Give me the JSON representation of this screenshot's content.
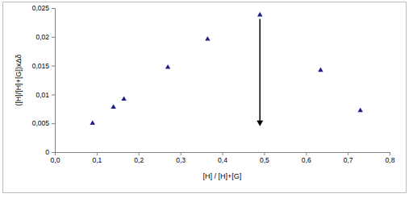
{
  "chart_data": {
    "type": "scatter",
    "x_label": "[H] / [H]+[G]",
    "y_label": "([H]/[H]+[G])xΔδ",
    "x": [
      0.09,
      0.14,
      0.165,
      0.27,
      0.365,
      0.49,
      0.635,
      0.73
    ],
    "values": [
      0.005,
      0.0078,
      0.0092,
      0.0147,
      0.0196,
      0.0238,
      0.0142,
      0.0072
    ],
    "color": "#1f1f8c",
    "marker": "triangle",
    "grid": false,
    "xlim": [
      0,
      0.8
    ],
    "xticks": [
      {
        "value": 0,
        "label": "0,0"
      },
      {
        "value": 0.1,
        "label": "0,1"
      },
      {
        "value": 0.2,
        "label": "0,2"
      },
      {
        "value": 0.3,
        "label": "0,3"
      },
      {
        "value": 0.4,
        "label": "0,4"
      },
      {
        "value": 0.5,
        "label": "0,5"
      },
      {
        "value": 0.6,
        "label": "0,6"
      },
      {
        "value": 0.7,
        "label": "0,7"
      },
      {
        "value": 0.8,
        "label": "0,8"
      }
    ],
    "ylim": [
      0,
      0.025
    ],
    "yticks": [
      0,
      {
        "value": 0.005,
        "label": "0,005"
      },
      {
        "value": 0.01,
        "label": "0,01"
      },
      {
        "value": 0.015,
        "label": "0,015"
      },
      {
        "value": 0.02,
        "label": "0,02"
      },
      {
        "value": 0.025,
        "label": "0,025"
      }
    ]
  }
}
